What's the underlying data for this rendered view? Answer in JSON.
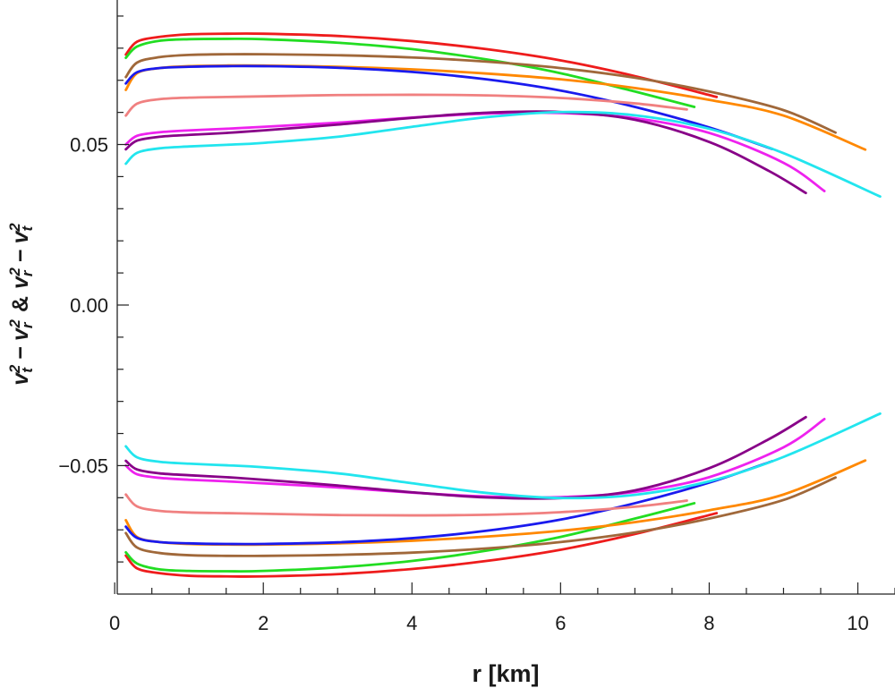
{
  "chart_data": {
    "type": "line",
    "xlabel": "r [km]",
    "ylabel_parts": {
      "v": "v",
      "t": "t",
      "r": "r",
      "sq": "2",
      "minus": "−",
      "amp": "&"
    },
    "xlim": [
      -0.05,
      10.5
    ],
    "ylim": [
      -0.09,
      0.095
    ],
    "x_ticks": [
      0,
      2,
      4,
      6,
      8,
      10
    ],
    "y_ticks": [
      -0.05,
      0.0,
      0.05
    ],
    "x_tick_labels": [
      "0",
      "2",
      "4",
      "6",
      "8",
      "10"
    ],
    "y_tick_labels": [
      "−0.05",
      "0.00",
      "0.05"
    ],
    "grid": false,
    "legend": "none",
    "symmetric_about_zero": true,
    "series": [
      {
        "color": "#ee1c1c",
        "x": [
          0.15,
          0.3,
          0.6,
          1.0,
          1.5,
          2,
          3,
          4,
          5,
          6,
          7,
          8.1
        ],
        "y": [
          0.078,
          0.082,
          0.0835,
          0.0843,
          0.0845,
          0.0845,
          0.0838,
          0.0822,
          0.0797,
          0.0762,
          0.0713,
          0.0648
        ]
      },
      {
        "color": "#22dd22",
        "x": [
          0.15,
          0.3,
          0.6,
          1.0,
          1.5,
          2,
          3,
          4,
          5,
          6,
          7,
          7.8
        ],
        "y": [
          0.077,
          0.0805,
          0.0823,
          0.0828,
          0.0829,
          0.0828,
          0.0817,
          0.0797,
          0.0765,
          0.0722,
          0.0665,
          0.0617
        ]
      },
      {
        "color": "#a0683a",
        "x": [
          0.15,
          0.3,
          0.6,
          1.0,
          1.5,
          2,
          3,
          4,
          5,
          6,
          7,
          8,
          9,
          9.7
        ],
        "y": [
          0.071,
          0.0755,
          0.0772,
          0.0779,
          0.0781,
          0.0781,
          0.0778,
          0.0771,
          0.0758,
          0.0738,
          0.0708,
          0.0665,
          0.0607,
          0.0537
        ]
      },
      {
        "color": "#ff8800",
        "x": [
          0.15,
          0.3,
          0.6,
          1.0,
          1.5,
          2,
          3,
          4,
          5,
          6,
          7,
          8,
          9,
          10.1
        ],
        "y": [
          0.067,
          0.0722,
          0.0738,
          0.0744,
          0.0746,
          0.0746,
          0.0742,
          0.0734,
          0.0721,
          0.0703,
          0.0676,
          0.0639,
          0.059,
          0.0484
        ]
      },
      {
        "color": "#1a1aee",
        "x": [
          0.15,
          0.3,
          0.6,
          1.0,
          1.5,
          2,
          3,
          4,
          5,
          6,
          7,
          8,
          8.85
        ],
        "y": [
          0.069,
          0.0725,
          0.0738,
          0.0742,
          0.0744,
          0.0744,
          0.0739,
          0.0726,
          0.0703,
          0.0668,
          0.0617,
          0.0553,
          0.0486
        ]
      },
      {
        "color": "#f08080",
        "x": [
          0.15,
          0.3,
          0.6,
          1.0,
          1.5,
          2,
          3,
          4,
          5,
          6,
          7,
          7.7
        ],
        "y": [
          0.059,
          0.0627,
          0.0641,
          0.0646,
          0.0648,
          0.065,
          0.0654,
          0.0655,
          0.0653,
          0.0645,
          0.0628,
          0.0609
        ]
      },
      {
        "color": "#ee22ee",
        "x": [
          0.15,
          0.3,
          0.6,
          1.0,
          1.5,
          2,
          3,
          4,
          5,
          6,
          7,
          8,
          9,
          9.55
        ],
        "y": [
          0.05,
          0.0527,
          0.0538,
          0.0544,
          0.0549,
          0.0555,
          0.0568,
          0.0584,
          0.0596,
          0.0598,
          0.0582,
          0.0536,
          0.0443,
          0.0355
        ]
      },
      {
        "color": "#880088",
        "x": [
          0.15,
          0.3,
          0.6,
          1.0,
          1.5,
          2,
          3,
          4,
          5,
          6,
          7,
          8,
          8.8,
          9.3
        ],
        "y": [
          0.0485,
          0.0512,
          0.0524,
          0.053,
          0.0536,
          0.0544,
          0.0562,
          0.0583,
          0.0599,
          0.0601,
          0.0577,
          0.0508,
          0.0418,
          0.0349
        ]
      },
      {
        "color": "#22e5ee",
        "x": [
          0.15,
          0.3,
          0.6,
          1.0,
          1.5,
          2,
          3,
          4,
          5,
          6,
          7,
          8,
          9,
          10.3
        ],
        "y": [
          0.044,
          0.0474,
          0.0488,
          0.0494,
          0.0499,
          0.0505,
          0.0524,
          0.0555,
          0.0585,
          0.0601,
          0.0591,
          0.0549,
          0.0473,
          0.0338
        ]
      }
    ]
  }
}
